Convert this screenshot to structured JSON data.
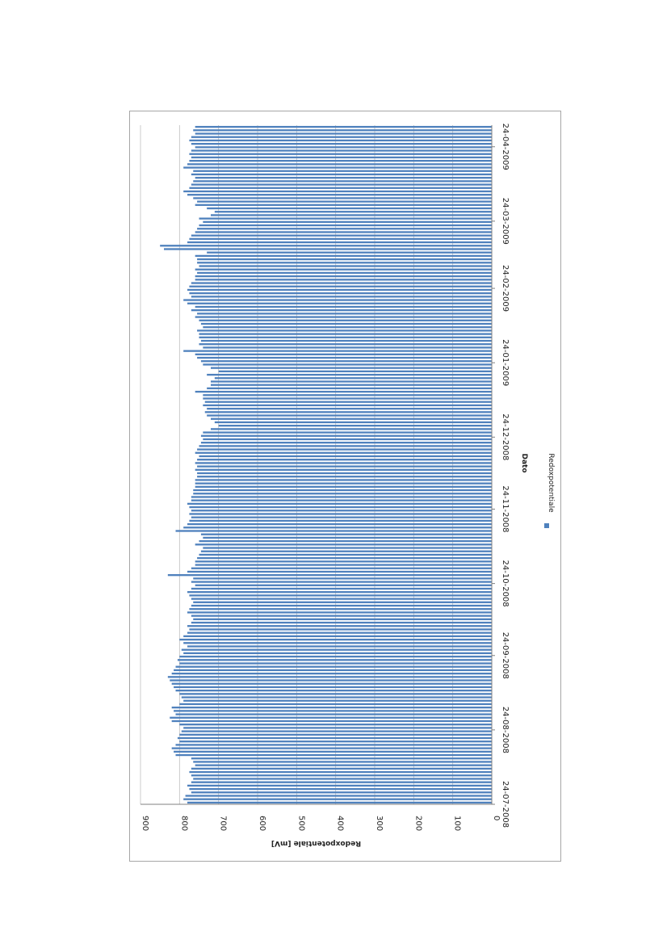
{
  "chart_data": {
    "type": "bar",
    "orientation": "vertical-bars-rotated-page",
    "xlabel": "Dato",
    "ylabel": "Redoxpotentiale [mV]",
    "ylim": [
      0,
      900
    ],
    "yticks": [
      0,
      100,
      200,
      300,
      400,
      500,
      600,
      700,
      800,
      900
    ],
    "xtick_labels": [
      "24-07-2008",
      "24-08-2008",
      "24-09-2008",
      "24-10-2008",
      "24-11-2008",
      "24-12-2008",
      "24-01-2009",
      "24-02-2009",
      "24-03-2009",
      "24-04-2009"
    ],
    "date_range": [
      "2008-07-24",
      "2009-05-03"
    ],
    "grid": true,
    "legend_position": "right",
    "series": [
      {
        "name": "Redoxpotentiale",
        "color": "#4f81bd",
        "values": [
          780,
          790,
          785,
          770,
          775,
          780,
          770,
          765,
          770,
          775,
          770,
          760,
          765,
          770,
          810,
          815,
          820,
          810,
          800,
          805,
          800,
          795,
          790,
          800,
          820,
          825,
          810,
          815,
          820,
          800,
          790,
          795,
          800,
          810,
          815,
          820,
          825,
          830,
          820,
          815,
          810,
          800,
          805,
          800,
          790,
          795,
          780,
          790,
          800,
          790,
          780,
          775,
          780,
          770,
          765,
          770,
          780,
          775,
          770,
          765,
          770,
          775,
          780,
          770,
          760,
          770,
          765,
          830,
          780,
          770,
          760,
          760,
          755,
          750,
          745,
          740,
          760,
          750,
          740,
          745,
          810,
          790,
          780,
          775,
          770,
          775,
          770,
          775,
          780,
          770,
          770,
          765,
          765,
          760,
          760,
          760,
          755,
          755,
          760,
          755,
          760,
          755,
          750,
          760,
          755,
          750,
          745,
          740,
          745,
          740,
          720,
          700,
          710,
          720,
          730,
          735,
          730,
          740,
          735,
          740,
          740,
          760,
          730,
          720,
          720,
          710,
          730,
          700,
          720,
          740,
          745,
          755,
          760,
          790,
          740,
          750,
          745,
          750,
          750,
          755,
          740,
          745,
          750,
          760,
          755,
          770,
          760,
          780,
          790,
          770,
          775,
          780,
          775,
          770,
          760,
          760,
          755,
          760,
          750,
          755,
          755,
          760,
          730,
          840,
          850,
          780,
          775,
          770,
          760,
          755,
          750,
          740,
          750,
          720,
          710,
          730,
          760,
          755,
          765,
          780,
          790,
          775,
          770,
          765,
          760,
          770,
          765,
          790,
          780,
          775,
          770,
          775,
          770,
          760,
          770,
          775,
          770,
          760,
          765,
          760
        ]
      }
    ]
  }
}
